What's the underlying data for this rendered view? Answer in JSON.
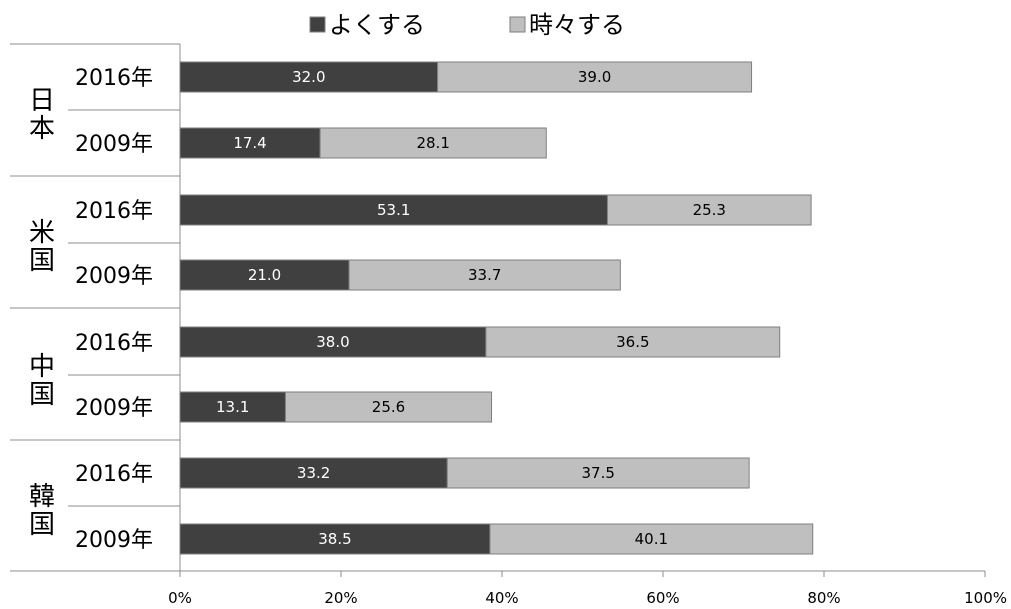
{
  "chart_data": {
    "type": "bar",
    "orientation": "horizontal",
    "stacked": true,
    "title": "",
    "xlabel": "",
    "ylabel": "",
    "xlim": [
      0,
      100
    ],
    "x_ticks": [
      "0%",
      "20%",
      "40%",
      "60%",
      "80%",
      "100%"
    ],
    "legend": {
      "position": "top"
    },
    "colors": {
      "often": "#404040",
      "sometimes": "#bfbfbf",
      "border": "#7f7f7f"
    },
    "groups": [
      {
        "label": "日本",
        "chars": [
          "日",
          "本"
        ],
        "categories": [
          "2016年",
          "2009年"
        ]
      },
      {
        "label": "米国",
        "chars": [
          "米",
          "国"
        ],
        "categories": [
          "2016年",
          "2009年"
        ]
      },
      {
        "label": "中国",
        "chars": [
          "中",
          "国"
        ],
        "categories": [
          "2016年",
          "2009年"
        ]
      },
      {
        "label": "韓国",
        "chars": [
          "韓",
          "国"
        ],
        "categories": [
          "2016年",
          "2009年"
        ]
      }
    ],
    "categories": [
      "2016年",
      "2009年",
      "2016年",
      "2009年",
      "2016年",
      "2009年",
      "2016年",
      "2009年"
    ],
    "series": [
      {
        "name": "よくする",
        "values": [
          32.0,
          17.4,
          53.1,
          21.0,
          38.0,
          13.1,
          33.2,
          38.5
        ],
        "labels": [
          "32.0",
          "17.4",
          "53.1",
          "21.0",
          "38.0",
          "13.1",
          "33.2",
          "38.5"
        ]
      },
      {
        "name": "時々する",
        "values": [
          39.0,
          28.1,
          25.3,
          33.7,
          36.5,
          25.6,
          37.5,
          40.1
        ],
        "labels": [
          "39.0",
          "28.1",
          "25.3",
          "33.7",
          "36.5",
          "25.6",
          "37.5",
          "40.1"
        ]
      }
    ]
  }
}
